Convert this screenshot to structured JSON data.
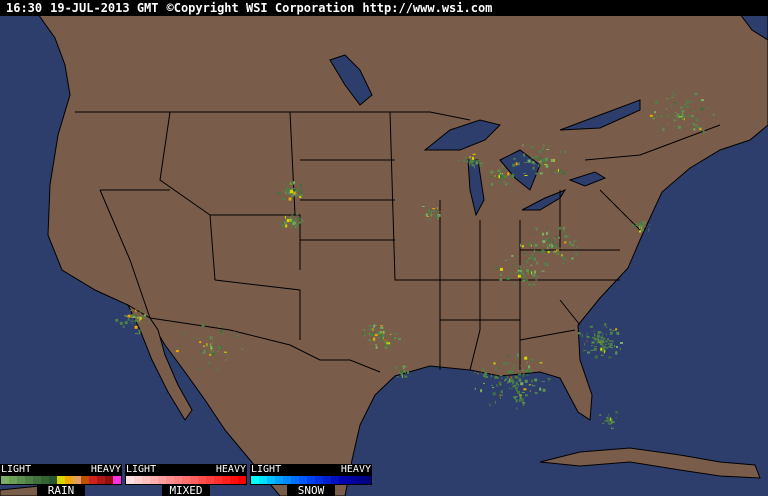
{
  "header": {
    "time": "16:30",
    "date": "19-JUL-2013 GMT",
    "copyright": "©Copyright WSI Corporation",
    "url": "http://www.wsi.com"
  },
  "colors": {
    "land": "#7a5c4b",
    "water": "#2d3e6c",
    "borders": "#000000"
  },
  "legend": [
    {
      "name": "RAIN",
      "light": "LIGHT",
      "heavy": "HEAVY",
      "colors": [
        "#7aaf63",
        "#6a9f58",
        "#5c9050",
        "#4e8046",
        "#40703c",
        "#346432",
        "#285628",
        "#d8d800",
        "#f0a800",
        "#e0a060",
        "#c05000",
        "#d02020",
        "#b01818",
        "#901010",
        "#ff30e0"
      ]
    },
    {
      "name": "MIXED",
      "light": "LIGHT",
      "heavy": "HEAVY",
      "colors": [
        "#ffe0e0",
        "#ffd0d0",
        "#ffc0c0",
        "#ffb0b0",
        "#ffa0a0",
        "#ff9090",
        "#ff8080",
        "#ff7070",
        "#ff6060",
        "#ff5050",
        "#ff4040",
        "#ff3030",
        "#ff2020",
        "#ff1010",
        "#ff0000"
      ]
    },
    {
      "name": "SNOW",
      "light": "LIGHT",
      "heavy": "HEAVY",
      "colors": [
        "#00ffff",
        "#00e0ff",
        "#00c0ff",
        "#00a0ff",
        "#0088ff",
        "#0070ff",
        "#0058ff",
        "#0040f0",
        "#0030e0",
        "#0020d0",
        "#0010c0",
        "#0000b0",
        "#0000a0",
        "#000090",
        "#000080"
      ]
    }
  ]
}
